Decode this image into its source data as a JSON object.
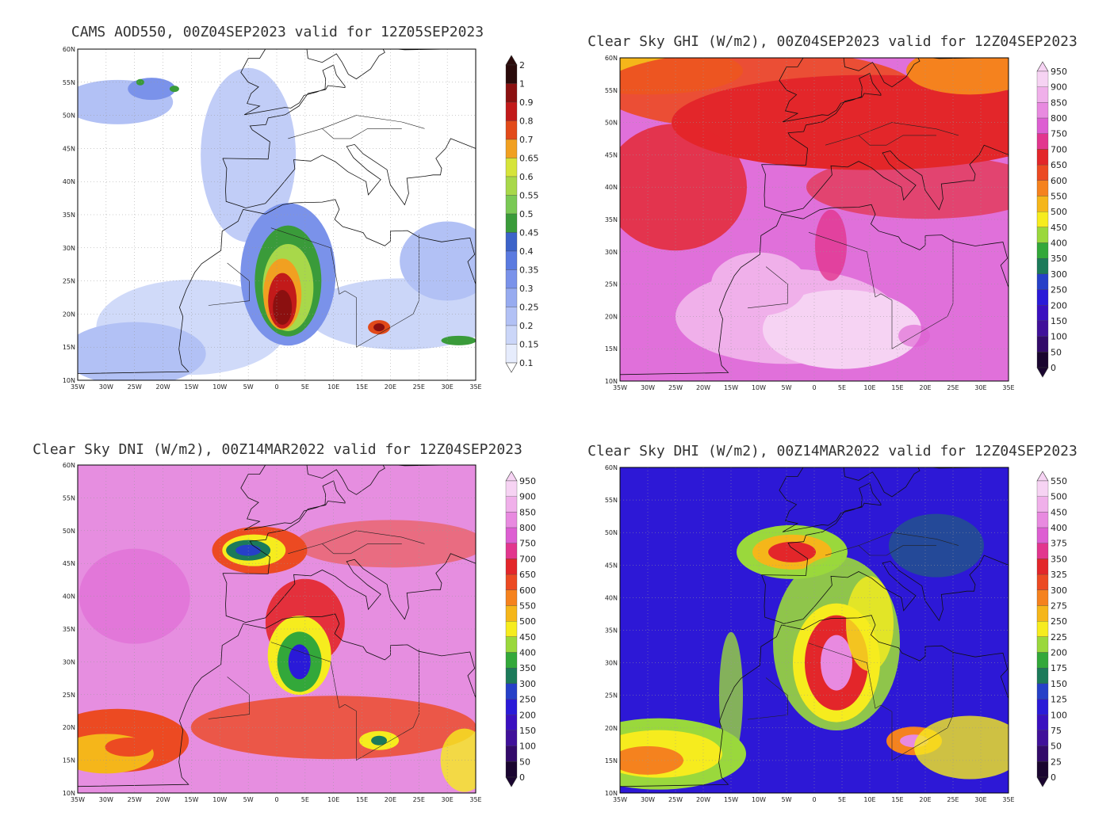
{
  "lat_labels": [
    "60N",
    "55N",
    "50N",
    "45N",
    "40N",
    "35N",
    "30N",
    "25N",
    "20N",
    "15N",
    "10N"
  ],
  "lon_labels": [
    "35W",
    "30W",
    "25W",
    "20W",
    "15W",
    "10W",
    "5W",
    "0",
    "5E",
    "10E",
    "15E",
    "20E",
    "25E",
    "30E",
    "35E"
  ],
  "panels": [
    {
      "id": "aod",
      "title": "CAMS AOD550, 00Z04SEP2023 valid for 12Z05SEP2023",
      "colorbar_labels": [
        "2",
        "1",
        "0.9",
        "0.8",
        "0.7",
        "0.65",
        "0.6",
        "0.55",
        "0.5",
        "0.45",
        "0.4",
        "0.35",
        "0.3",
        "0.25",
        "0.2",
        "0.15",
        "0.1"
      ],
      "colorbar_colors": [
        "#2a0a0a",
        "#8b1010",
        "#c21a1a",
        "#e24a1a",
        "#f1a021",
        "#d6e43a",
        "#a8d84a",
        "#7ac955",
        "#3a9b3a",
        "#3c63c9",
        "#5a7ae0",
        "#7a92ea",
        "#97abf0",
        "#b2c1f5",
        "#cbd6f8",
        "#e6ecfc"
      ],
      "base_color": "#ffffff"
    },
    {
      "id": "ghi",
      "title": "Clear Sky GHI (W/m2), 00Z04SEP2023 valid for 12Z04SEP2023",
      "colorbar_labels": [
        "950",
        "900",
        "850",
        "800",
        "750",
        "700",
        "650",
        "600",
        "550",
        "500",
        "450",
        "400",
        "350",
        "300",
        "250",
        "200",
        "150",
        "100",
        "50",
        "0"
      ],
      "colorbar_colors": [
        "#f6d3f3",
        "#f0b0ea",
        "#e88ae0",
        "#dd5fd2",
        "#e2368e",
        "#e3262a",
        "#ec4a22",
        "#f5821e",
        "#f5b61a",
        "#f6ec1e",
        "#9ad83c",
        "#33a83a",
        "#1c7a5a",
        "#2640c8",
        "#2a1ad8",
        "#3a10c0",
        "#40109a",
        "#330a6a",
        "#1a0530"
      ],
      "base_color": "#e070da"
    },
    {
      "id": "dni",
      "title": "Clear Sky DNI (W/m2), 00Z14MAR2022 valid for 12Z04SEP2023",
      "colorbar_labels": [
        "950",
        "900",
        "850",
        "800",
        "750",
        "700",
        "650",
        "600",
        "550",
        "500",
        "450",
        "400",
        "350",
        "300",
        "250",
        "200",
        "150",
        "100",
        "50",
        "0"
      ],
      "colorbar_colors": [
        "#f6d3f3",
        "#f0b0ea",
        "#e88ae0",
        "#dd5fd2",
        "#e2368e",
        "#e3262a",
        "#ec4a22",
        "#f5821e",
        "#f5b61a",
        "#f6ec1e",
        "#9ad83c",
        "#33a83a",
        "#1c7a5a",
        "#2640c8",
        "#2a1ad8",
        "#3a10c0",
        "#40109a",
        "#330a6a",
        "#1a0530"
      ],
      "base_color": "#e68ee0"
    },
    {
      "id": "dhi",
      "title": "Clear Sky DHI (W/m2), 00Z14MAR2022 valid for 12Z04SEP2023",
      "colorbar_labels": [
        "550",
        "500",
        "450",
        "400",
        "375",
        "350",
        "325",
        "300",
        "275",
        "250",
        "225",
        "200",
        "175",
        "150",
        "125",
        "100",
        "75",
        "50",
        "25",
        "0"
      ],
      "colorbar_colors": [
        "#f6d3f3",
        "#f0b0ea",
        "#e88ae0",
        "#dd5fd2",
        "#e2368e",
        "#e3262a",
        "#ec4a22",
        "#f5821e",
        "#f5b61a",
        "#f6ec1e",
        "#9ad83c",
        "#33a83a",
        "#1c7a5a",
        "#2640c8",
        "#2a1ad8",
        "#3a10c0",
        "#40109a",
        "#330a6a",
        "#1a0530"
      ],
      "base_color": "#2d18d6"
    }
  ]
}
